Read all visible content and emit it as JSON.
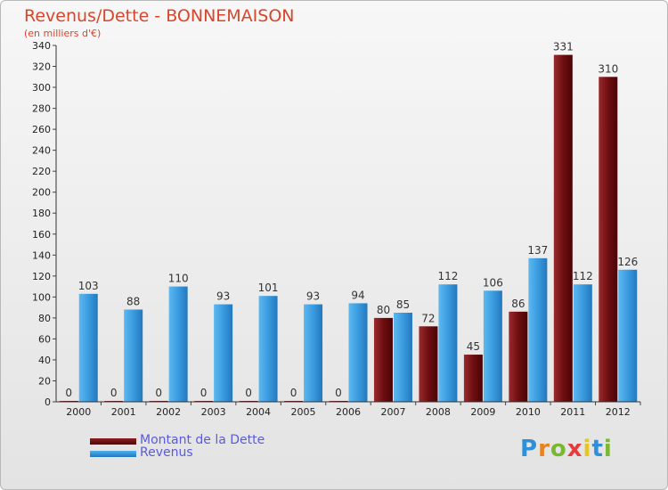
{
  "title": "Revenus/Dette - BONNEMAISON",
  "subtitle": "(en milliers d'€)",
  "logo": "Proxiti",
  "colors": {
    "dette": "#7a1417",
    "revenus": "#3a9bdf",
    "title": "#d9452a",
    "legend_text": "#5a5adf"
  },
  "chart_data": {
    "type": "bar",
    "categories": [
      "2000",
      "2001",
      "2002",
      "2003",
      "2004",
      "2005",
      "2006",
      "2007",
      "2008",
      "2009",
      "2010",
      "2011",
      "2012"
    ],
    "series": [
      {
        "name": "Montant de la Dette",
        "values": [
          0,
          0,
          0,
          0,
          0,
          0,
          0,
          80,
          72,
          45,
          86,
          331,
          310
        ]
      },
      {
        "name": "Revenus",
        "values": [
          103,
          88,
          110,
          93,
          101,
          93,
          94,
          85,
          112,
          106,
          137,
          112,
          126
        ]
      }
    ],
    "ylim": [
      0,
      340
    ],
    "yticks": [
      0,
      20,
      40,
      60,
      80,
      100,
      120,
      140,
      160,
      180,
      200,
      220,
      240,
      260,
      280,
      300,
      320,
      340
    ],
    "grid": false,
    "legend": "bottom-left"
  }
}
